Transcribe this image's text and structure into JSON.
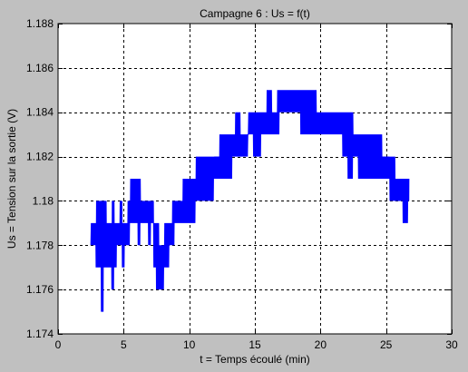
{
  "chart_data": {
    "type": "line",
    "title": "Campagne 6 : Us = f(t)",
    "xlabel": "t = Temps écoulé (min)",
    "ylabel": "Us = Tension sur la sortie (V)",
    "xlim": [
      0,
      30
    ],
    "ylim": [
      1.174,
      1.188
    ],
    "xticks": [
      0,
      5,
      10,
      15,
      20,
      25,
      30
    ],
    "xtick_labels": [
      "0",
      "5",
      "10",
      "15",
      "20",
      "25",
      "30"
    ],
    "yticks": [
      1.174,
      1.176,
      1.178,
      1.18,
      1.182,
      1.184,
      1.186,
      1.188
    ],
    "ytick_labels": [
      "1.174",
      "1.176",
      "1.178",
      "1.18",
      "1.182",
      "1.184",
      "1.186",
      "1.188"
    ],
    "grid": true,
    "grid_style": "dashed",
    "series": [
      {
        "color": "#0000ff",
        "x": [
          2.5,
          2.7,
          2.9,
          3.1,
          3.3,
          3.5,
          3.7,
          3.9,
          4.1,
          4.3,
          4.5,
          4.7,
          4.9,
          5.1,
          5.3,
          5.5,
          5.7,
          5.9,
          6.1,
          6.3,
          6.5,
          6.7,
          6.9,
          7.1,
          7.3,
          7.5,
          7.7,
          7.9,
          8.1,
          8.3,
          8.5,
          8.7,
          8.9,
          9.1,
          9.3,
          9.5,
          9.7,
          9.9,
          10.1,
          10.3,
          10.5,
          10.7,
          10.9,
          11.1,
          11.3,
          11.5,
          11.7,
          11.9,
          12.1,
          12.3,
          12.5,
          12.7,
          12.9,
          13.1,
          13.3,
          13.5,
          13.7,
          13.9,
          14.1,
          14.3,
          14.5,
          14.7,
          14.9,
          15.1,
          15.3,
          15.5,
          15.7,
          15.9,
          16.1,
          16.3,
          16.5,
          16.7,
          16.9,
          17.1,
          17.3,
          17.5,
          17.7,
          17.9,
          18.1,
          18.3,
          18.5,
          18.7,
          18.9,
          19.1,
          19.3,
          19.5,
          19.7,
          19.9,
          20.1,
          20.3,
          20.5,
          20.7,
          20.9,
          21.1,
          21.3,
          21.5,
          21.7,
          21.9,
          22.1,
          22.3,
          22.5,
          22.7,
          22.9,
          23.1,
          23.3,
          23.5,
          23.7,
          23.9,
          24.1,
          24.3,
          24.5,
          24.7,
          24.9,
          25.1,
          25.3,
          25.5,
          25.7,
          25.9,
          26.1,
          26.3,
          26.5,
          26.7
        ],
        "lo": [
          1.178,
          1.178,
          1.177,
          1.177,
          1.175,
          1.177,
          1.177,
          1.177,
          1.176,
          1.177,
          1.178,
          1.178,
          1.177,
          1.178,
          1.178,
          1.179,
          1.179,
          1.179,
          1.178,
          1.179,
          1.179,
          1.179,
          1.178,
          1.179,
          1.177,
          1.176,
          1.176,
          1.176,
          1.177,
          1.177,
          1.178,
          1.178,
          1.179,
          1.179,
          1.179,
          1.179,
          1.179,
          1.179,
          1.179,
          1.179,
          1.18,
          1.18,
          1.18,
          1.18,
          1.18,
          1.18,
          1.18,
          1.181,
          1.181,
          1.181,
          1.181,
          1.181,
          1.181,
          1.181,
          1.182,
          1.182,
          1.182,
          1.182,
          1.182,
          1.182,
          1.183,
          1.183,
          1.182,
          1.182,
          1.182,
          1.183,
          1.183,
          1.183,
          1.183,
          1.183,
          1.183,
          1.183,
          1.184,
          1.184,
          1.184,
          1.184,
          1.184,
          1.184,
          1.184,
          1.184,
          1.183,
          1.183,
          1.183,
          1.183,
          1.183,
          1.183,
          1.183,
          1.183,
          1.183,
          1.183,
          1.183,
          1.183,
          1.183,
          1.183,
          1.183,
          1.183,
          1.182,
          1.182,
          1.181,
          1.181,
          1.182,
          1.182,
          1.181,
          1.181,
          1.181,
          1.181,
          1.181,
          1.181,
          1.181,
          1.181,
          1.181,
          1.181,
          1.181,
          1.181,
          1.18,
          1.18,
          1.18,
          1.18,
          1.18,
          1.179,
          1.179,
          1.18
        ],
        "hi": [
          1.179,
          1.179,
          1.18,
          1.18,
          1.18,
          1.18,
          1.179,
          1.179,
          1.18,
          1.179,
          1.179,
          1.18,
          1.179,
          1.179,
          1.18,
          1.181,
          1.181,
          1.181,
          1.181,
          1.18,
          1.18,
          1.18,
          1.18,
          1.18,
          1.179,
          1.179,
          1.178,
          1.178,
          1.179,
          1.179,
          1.179,
          1.18,
          1.18,
          1.18,
          1.18,
          1.181,
          1.181,
          1.181,
          1.181,
          1.181,
          1.182,
          1.182,
          1.182,
          1.182,
          1.182,
          1.182,
          1.182,
          1.182,
          1.182,
          1.183,
          1.183,
          1.183,
          1.183,
          1.183,
          1.183,
          1.184,
          1.184,
          1.183,
          1.183,
          1.183,
          1.184,
          1.184,
          1.184,
          1.184,
          1.184,
          1.184,
          1.184,
          1.185,
          1.185,
          1.184,
          1.184,
          1.185,
          1.185,
          1.185,
          1.185,
          1.185,
          1.185,
          1.185,
          1.185,
          1.185,
          1.185,
          1.185,
          1.185,
          1.185,
          1.185,
          1.185,
          1.184,
          1.184,
          1.184,
          1.184,
          1.184,
          1.184,
          1.184,
          1.184,
          1.184,
          1.184,
          1.184,
          1.184,
          1.184,
          1.184,
          1.183,
          1.183,
          1.183,
          1.183,
          1.183,
          1.183,
          1.183,
          1.183,
          1.183,
          1.183,
          1.183,
          1.182,
          1.182,
          1.182,
          1.182,
          1.182,
          1.181,
          1.181,
          1.181,
          1.181,
          1.181,
          1.181
        ]
      }
    ]
  }
}
